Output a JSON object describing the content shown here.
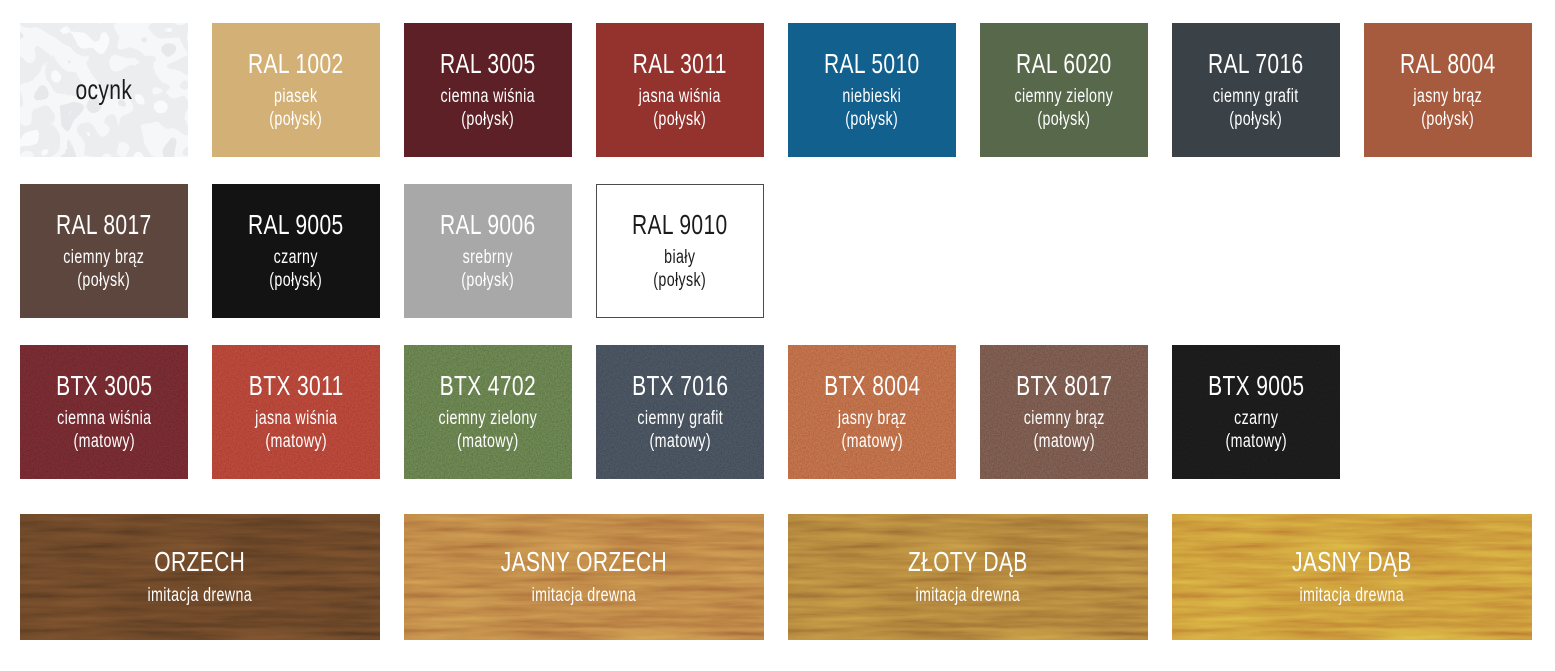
{
  "palette": {
    "accent_text_color": "#ffffff",
    "dark_text_color": "#1b1b1b",
    "white_tile_border": "#4c4c4c"
  },
  "swatch_rows": [
    {
      "tiles": [
        {
          "code": "",
          "name": "ocynk",
          "finish": "",
          "color": "#d6d9dc",
          "texture": "galvanized",
          "text_color": "#1b1b1b"
        },
        {
          "code": "RAL 1002",
          "name": "piasek",
          "finish": "(połysk)",
          "color": "#d3b075",
          "texture": "solid"
        },
        {
          "code": "RAL 3005",
          "name": "ciemna wiśnia",
          "finish": "(połysk)",
          "color": "#5e2027",
          "texture": "solid"
        },
        {
          "code": "RAL 3011",
          "name": "jasna wiśnia",
          "finish": "(połysk)",
          "color": "#94332d",
          "texture": "solid"
        },
        {
          "code": "RAL 5010",
          "name": "niebieski",
          "finish": "(połysk)",
          "color": "#12608e",
          "texture": "solid"
        },
        {
          "code": "RAL 6020",
          "name": "ciemny zielony",
          "finish": "(połysk)",
          "color": "#58684a",
          "texture": "solid"
        },
        {
          "code": "RAL 7016",
          "name": "ciemny grafit",
          "finish": "(połysk)",
          "color": "#3a4147",
          "texture": "solid"
        },
        {
          "code": "RAL 8004",
          "name": "jasny brąz",
          "finish": "(połysk)",
          "color": "#a75b3e",
          "texture": "solid"
        }
      ]
    },
    {
      "tiles": [
        {
          "code": "RAL 8017",
          "name": "ciemny brąz",
          "finish": "(połysk)",
          "color": "#5d463d",
          "texture": "solid"
        },
        {
          "code": "RAL 9005",
          "name": "czarny",
          "finish": "(połysk)",
          "color": "#131313",
          "texture": "solid"
        },
        {
          "code": "RAL 9006",
          "name": "srebrny",
          "finish": "(połysk)",
          "color": "#a8a8a8",
          "texture": "solid"
        },
        {
          "code": "RAL 9010",
          "name": "biały",
          "finish": "(połysk)",
          "color": "#ffffff",
          "texture": "solid",
          "text_color": "#1b1b1b",
          "border": "#4c4c4c"
        }
      ]
    },
    {
      "tiles": [
        {
          "code": "BTX 3005",
          "name": "ciemna wiśnia",
          "finish": "(matowy)",
          "color": "#5e2227",
          "texture": "speckle"
        },
        {
          "code": "BTX 3011",
          "name": "jasna wiśnia",
          "finish": "(matowy)",
          "color": "#9d382d",
          "texture": "speckle"
        },
        {
          "code": "BTX 4702",
          "name": "ciemny zielony",
          "finish": "(matowy)",
          "color": "#54683f",
          "texture": "speckle"
        },
        {
          "code": "BTX 7016",
          "name": "ciemny grafit",
          "finish": "(matowy)",
          "color": "#3a424c",
          "texture": "speckle"
        },
        {
          "code": "BTX 8004",
          "name": "jasny brąz",
          "finish": "(matowy)",
          "color": "#a8593a",
          "texture": "speckle"
        },
        {
          "code": "BTX 8017",
          "name": "ciemny brąz",
          "finish": "(matowy)",
          "color": "#63493f",
          "texture": "speckle"
        },
        {
          "code": "BTX 9005",
          "name": "czarny",
          "finish": "(matowy)",
          "color": "#161616",
          "texture": "speckle"
        }
      ]
    },
    {
      "tiles": [
        {
          "code": "ORZECH",
          "name": "imitacja drewna",
          "finish": "",
          "color": "#573920",
          "texture": "wood",
          "span": 2
        },
        {
          "code": "JASNY ORZECH",
          "name": "imitacja drewna",
          "finish": "",
          "color": "#a96d39",
          "texture": "wood",
          "span": 2
        },
        {
          "code": "ZŁOTY DĄB",
          "name": "imitacja drewna",
          "finish": "",
          "color": "#9a6c31",
          "texture": "wood",
          "span": 2
        },
        {
          "code": "JASNY DĄB",
          "name": "imitacja drewna",
          "finish": "",
          "color": "#bd7e30",
          "texture": "wood",
          "span": 2
        }
      ]
    }
  ],
  "chart_data": {
    "type": "table",
    "title": "",
    "columns": [
      "code",
      "name",
      "finish",
      "color_hex",
      "texture"
    ],
    "rows": [
      [
        "",
        "ocynk",
        "",
        "#d6d9dc",
        "galvanized"
      ],
      [
        "RAL 1002",
        "piasek",
        "(połysk)",
        "#d3b075",
        "solid"
      ],
      [
        "RAL 3005",
        "ciemna wiśnia",
        "(połysk)",
        "#5e2027",
        "solid"
      ],
      [
        "RAL 3011",
        "jasna wiśnia",
        "(połysk)",
        "#94332d",
        "solid"
      ],
      [
        "RAL 5010",
        "niebieski",
        "(połysk)",
        "#12608e",
        "solid"
      ],
      [
        "RAL 6020",
        "ciemny zielony",
        "(połysk)",
        "#58684a",
        "solid"
      ],
      [
        "RAL 7016",
        "ciemny grafit",
        "(połysk)",
        "#3a4147",
        "solid"
      ],
      [
        "RAL 8004",
        "jasny brąz",
        "(połysk)",
        "#a75b3e",
        "solid"
      ],
      [
        "RAL 8017",
        "ciemny brąz",
        "(połysk)",
        "#5d463d",
        "solid"
      ],
      [
        "RAL 9005",
        "czarny",
        "(połysk)",
        "#131313",
        "solid"
      ],
      [
        "RAL 9006",
        "srebrny",
        "(połysk)",
        "#a8a8a8",
        "solid"
      ],
      [
        "RAL 9010",
        "biały",
        "(połysk)",
        "#ffffff",
        "solid"
      ],
      [
        "BTX 3005",
        "ciemna wiśnia",
        "(matowy)",
        "#5e2227",
        "speckle"
      ],
      [
        "BTX 3011",
        "jasna wiśnia",
        "(matowy)",
        "#9d382d",
        "speckle"
      ],
      [
        "BTX 4702",
        "ciemny zielony",
        "(matowy)",
        "#54683f",
        "speckle"
      ],
      [
        "BTX 7016",
        "ciemny grafit",
        "(matowy)",
        "#3a424c",
        "speckle"
      ],
      [
        "BTX 8004",
        "jasny brąz",
        "(matowy)",
        "#a8593a",
        "speckle"
      ],
      [
        "BTX 8017",
        "ciemny brąz",
        "(matowy)",
        "#63493f",
        "speckle"
      ],
      [
        "BTX 9005",
        "czarny",
        "(matowy)",
        "#161616",
        "speckle"
      ],
      [
        "ORZECH",
        "imitacja drewna",
        "",
        "#573920",
        "wood"
      ],
      [
        "JASNY ORZECH",
        "imitacja drewna",
        "",
        "#a96d39",
        "wood"
      ],
      [
        "ZŁOTY DĄB",
        "imitacja drewna",
        "",
        "#9a6c31",
        "wood"
      ],
      [
        "JASNY DĄB",
        "imitacja drewna",
        "",
        "#bd7e30",
        "wood"
      ]
    ]
  }
}
